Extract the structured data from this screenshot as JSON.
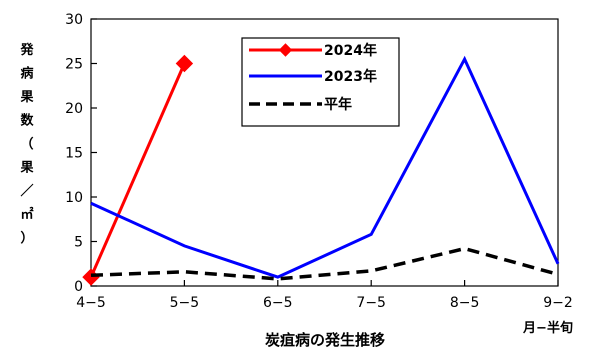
{
  "chart_data": {
    "type": "line",
    "categories": [
      "4−5",
      "5−5",
      "6−5",
      "7−5",
      "8−5",
      "9−2"
    ],
    "xlabel": "炭疽病の発生推移",
    "xunit": "月−半旬",
    "ylabel": "発病果数（果／㎡）",
    "ylim": [
      0,
      30
    ],
    "yticks": [
      0,
      5,
      10,
      15,
      20,
      25,
      30
    ],
    "grid": false,
    "legend_position": "top-center",
    "series": [
      {
        "name": "2024年",
        "color": "#ff0000",
        "marker": "diamond",
        "dash": "solid",
        "values": [
          1,
          25,
          null,
          null,
          null,
          null
        ]
      },
      {
        "name": "2023年",
        "color": "#0000ff",
        "marker": "none",
        "dash": "solid",
        "values": [
          9.3,
          4.5,
          1.0,
          5.8,
          25.5,
          2.5
        ]
      },
      {
        "name": "平年",
        "color": "#000000",
        "marker": "none",
        "dash": "dashed",
        "values": [
          1.2,
          1.6,
          0.8,
          1.7,
          4.2,
          1.3
        ]
      }
    ]
  }
}
